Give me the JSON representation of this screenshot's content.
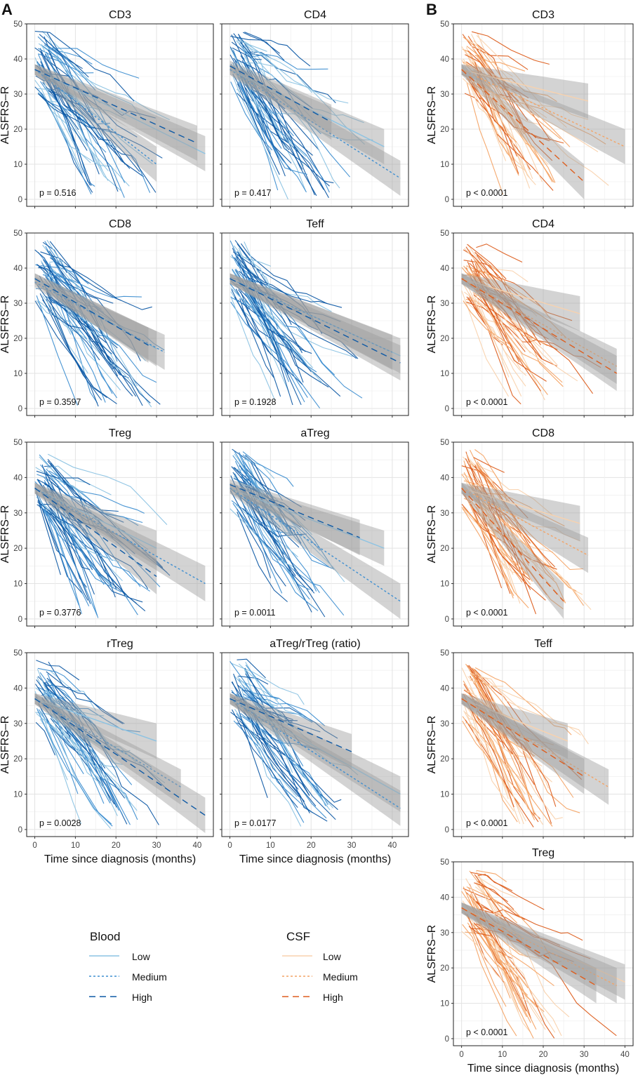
{
  "panel_labels": [
    "A",
    "B"
  ],
  "y_axis_label": "ALSFRS–R",
  "x_axis_label": "Time since diagnosis (months)",
  "colors": {
    "blood": {
      "low": "#8cc3e3",
      "medium": "#3f8fd1",
      "high": "#0f5aa5"
    },
    "csf": {
      "low": "#f9d2ad",
      "medium": "#f4a466",
      "high": "#dd5e1e"
    },
    "band": "#9e9e9e",
    "grid": "#e3e3e3"
  },
  "legend": {
    "blood": {
      "title": "Blood",
      "items": [
        "Low",
        "Medium",
        "High"
      ]
    },
    "csf": {
      "title": "CSF",
      "items": [
        "Low",
        "Medium",
        "High"
      ]
    }
  },
  "chart_data": [
    {
      "panel": "A",
      "source": "blood",
      "type": "line",
      "title": "CD3",
      "p": "p = 0.516",
      "ylim": [
        0,
        50
      ],
      "xlim": [
        -2,
        44
      ],
      "yticks": [
        0,
        10,
        20,
        30,
        40,
        50
      ],
      "xticks": [
        0,
        10,
        20,
        30,
        40
      ],
      "trends": [
        {
          "group": "Low",
          "x": [
            0,
            42
          ],
          "y": [
            37,
            13
          ]
        },
        {
          "group": "Medium",
          "x": [
            0,
            30
          ],
          "y": [
            37,
            10
          ]
        },
        {
          "group": "High",
          "x": [
            0,
            40
          ],
          "y": [
            37,
            16
          ]
        }
      ]
    },
    {
      "panel": "A",
      "source": "blood",
      "type": "line",
      "title": "CD4",
      "p": "p = 0.417",
      "ylim": [
        0,
        50
      ],
      "xlim": [
        -2,
        44
      ],
      "yticks": [
        0,
        10,
        20,
        30,
        40,
        50
      ],
      "xticks": [
        0,
        10,
        20,
        30,
        40
      ],
      "trends": [
        {
          "group": "Low",
          "x": [
            0,
            38
          ],
          "y": [
            37,
            15
          ]
        },
        {
          "group": "Medium",
          "x": [
            0,
            42
          ],
          "y": [
            37,
            6
          ]
        },
        {
          "group": "High",
          "x": [
            0,
            25
          ],
          "y": [
            38,
            22
          ]
        }
      ]
    },
    {
      "panel": "A",
      "source": "blood",
      "type": "line",
      "title": "CD8",
      "p": "p = 0.3597",
      "ylim": [
        0,
        50
      ],
      "xlim": [
        -2,
        44
      ],
      "yticks": [
        0,
        10,
        20,
        30,
        40,
        50
      ],
      "xticks": [
        0,
        10,
        20,
        30,
        40
      ],
      "trends": [
        {
          "group": "Low",
          "x": [
            0,
            30
          ],
          "y": [
            37,
            17
          ]
        },
        {
          "group": "Medium",
          "x": [
            0,
            32
          ],
          "y": [
            36,
            16
          ]
        },
        {
          "group": "High",
          "x": [
            0,
            28
          ],
          "y": [
            37,
            18
          ]
        }
      ]
    },
    {
      "panel": "A",
      "source": "blood",
      "type": "line",
      "title": "Teff",
      "p": "p = 0.1928",
      "ylim": [
        0,
        50
      ],
      "xlim": [
        -2,
        44
      ],
      "yticks": [
        0,
        10,
        20,
        30,
        40,
        50
      ],
      "xticks": [
        0,
        10,
        20,
        30,
        40
      ],
      "trends": [
        {
          "group": "Low",
          "x": [
            0,
            42
          ],
          "y": [
            37,
            15
          ]
        },
        {
          "group": "Medium",
          "x": [
            0,
            40
          ],
          "y": [
            37,
            16
          ]
        },
        {
          "group": "High",
          "x": [
            0,
            42
          ],
          "y": [
            37,
            13
          ]
        }
      ]
    },
    {
      "panel": "A",
      "source": "blood",
      "type": "line",
      "title": "Treg",
      "p": "p = 0.3776",
      "ylim": [
        0,
        50
      ],
      "xlim": [
        -2,
        44
      ],
      "yticks": [
        0,
        10,
        20,
        30,
        40,
        50
      ],
      "xticks": [
        0,
        10,
        20,
        30,
        40
      ],
      "trends": [
        {
          "group": "Low",
          "x": [
            0,
            30
          ],
          "y": [
            37,
            20
          ]
        },
        {
          "group": "Medium",
          "x": [
            0,
            42
          ],
          "y": [
            37,
            10
          ]
        },
        {
          "group": "High",
          "x": [
            0,
            30
          ],
          "y": [
            37,
            12
          ]
        }
      ]
    },
    {
      "panel": "A",
      "source": "blood",
      "type": "line",
      "title": "aTreg",
      "p": "p = 0.0011",
      "ylim": [
        0,
        50
      ],
      "xlim": [
        -2,
        44
      ],
      "yticks": [
        0,
        10,
        20,
        30,
        40,
        50
      ],
      "xticks": [
        0,
        10,
        20,
        30,
        40
      ],
      "trends": [
        {
          "group": "Low",
          "x": [
            0,
            38
          ],
          "y": [
            37,
            20
          ]
        },
        {
          "group": "Medium",
          "x": [
            0,
            42
          ],
          "y": [
            37,
            5
          ]
        },
        {
          "group": "High",
          "x": [
            0,
            32
          ],
          "y": [
            38,
            23
          ]
        }
      ]
    },
    {
      "panel": "A",
      "source": "blood",
      "type": "line",
      "title": "rTreg",
      "p": "p = 0.0028",
      "ylim": [
        0,
        50
      ],
      "xlim": [
        -2,
        44
      ],
      "yticks": [
        0,
        10,
        20,
        30,
        40,
        50
      ],
      "xticks": [
        0,
        10,
        20,
        30,
        40
      ],
      "trends": [
        {
          "group": "Low",
          "x": [
            0,
            30
          ],
          "y": [
            37,
            25
          ]
        },
        {
          "group": "Medium",
          "x": [
            0,
            36
          ],
          "y": [
            37,
            12
          ]
        },
        {
          "group": "High",
          "x": [
            0,
            42
          ],
          "y": [
            37,
            4
          ]
        }
      ]
    },
    {
      "panel": "A",
      "source": "blood",
      "type": "line",
      "title": "aTreg/rTreg (ratio)",
      "p": "p = 0.0177",
      "ylim": [
        0,
        50
      ],
      "xlim": [
        -2,
        44
      ],
      "yticks": [
        0,
        10,
        20,
        30,
        40,
        50
      ],
      "xticks": [
        0,
        10,
        20,
        30,
        40
      ],
      "trends": [
        {
          "group": "Low",
          "x": [
            0,
            42
          ],
          "y": [
            37,
            10
          ]
        },
        {
          "group": "Medium",
          "x": [
            0,
            42
          ],
          "y": [
            37,
            6
          ]
        },
        {
          "group": "High",
          "x": [
            0,
            30
          ],
          "y": [
            37,
            22
          ]
        }
      ]
    },
    {
      "panel": "B",
      "source": "csf",
      "type": "line",
      "title": "CD3",
      "p": "p < 0.0001",
      "ylim": [
        0,
        50
      ],
      "xlim": [
        -2,
        42
      ],
      "yticks": [
        0,
        10,
        20,
        30,
        40,
        50
      ],
      "xticks": [
        0,
        10,
        20,
        30,
        40
      ],
      "trends": [
        {
          "group": "Low",
          "x": [
            0,
            31
          ],
          "y": [
            37,
            28
          ]
        },
        {
          "group": "Medium",
          "x": [
            0,
            40
          ],
          "y": [
            37,
            15
          ]
        },
        {
          "group": "High",
          "x": [
            0,
            30
          ],
          "y": [
            37,
            5
          ]
        }
      ]
    },
    {
      "panel": "B",
      "source": "csf",
      "type": "line",
      "title": "CD4",
      "p": "p < 0.0001",
      "ylim": [
        0,
        50
      ],
      "xlim": [
        -2,
        42
      ],
      "yticks": [
        0,
        10,
        20,
        30,
        40,
        50
      ],
      "xticks": [
        0,
        10,
        20,
        30,
        40
      ],
      "trends": [
        {
          "group": "Low",
          "x": [
            0,
            29
          ],
          "y": [
            37,
            27
          ]
        },
        {
          "group": "Medium",
          "x": [
            0,
            38
          ],
          "y": [
            37,
            12
          ]
        },
        {
          "group": "High",
          "x": [
            0,
            38
          ],
          "y": [
            37,
            10
          ]
        }
      ]
    },
    {
      "panel": "B",
      "source": "csf",
      "type": "line",
      "title": "CD8",
      "p": "p < 0.0001",
      "ylim": [
        0,
        50
      ],
      "xlim": [
        -2,
        42
      ],
      "yticks": [
        0,
        10,
        20,
        30,
        40,
        50
      ],
      "xticks": [
        0,
        10,
        20,
        30,
        40
      ],
      "trends": [
        {
          "group": "Low",
          "x": [
            0,
            29
          ],
          "y": [
            37,
            27
          ]
        },
        {
          "group": "Medium",
          "x": [
            0,
            31
          ],
          "y": [
            37,
            18
          ]
        },
        {
          "group": "High",
          "x": [
            0,
            25
          ],
          "y": [
            37,
            5
          ]
        }
      ]
    },
    {
      "panel": "B",
      "source": "csf",
      "type": "line",
      "title": "Teff",
      "p": "p < 0.0001",
      "ylim": [
        0,
        50
      ],
      "xlim": [
        -2,
        42
      ],
      "yticks": [
        0,
        10,
        20,
        30,
        40,
        50
      ],
      "xticks": [
        0,
        10,
        20,
        30,
        40
      ],
      "trends": [
        {
          "group": "Low",
          "x": [
            0,
            26
          ],
          "y": [
            37,
            25
          ]
        },
        {
          "group": "Medium",
          "x": [
            0,
            36
          ],
          "y": [
            37,
            12
          ]
        },
        {
          "group": "High",
          "x": [
            0,
            30
          ],
          "y": [
            37,
            15
          ]
        }
      ]
    },
    {
      "panel": "B",
      "source": "csf",
      "type": "line",
      "title": "Treg",
      "p": "p < 0.0001",
      "ylim": [
        0,
        50
      ],
      "xlim": [
        -2,
        42
      ],
      "yticks": [
        0,
        10,
        20,
        30,
        40,
        50
      ],
      "xticks": [
        0,
        10,
        20,
        30,
        40
      ],
      "trends": [
        {
          "group": "Low",
          "x": [
            0,
            40
          ],
          "y": [
            37,
            16
          ]
        },
        {
          "group": "Medium",
          "x": [
            0,
            38
          ],
          "y": [
            37,
            15
          ]
        },
        {
          "group": "High",
          "x": [
            0,
            33
          ],
          "y": [
            37,
            15
          ]
        }
      ]
    }
  ]
}
